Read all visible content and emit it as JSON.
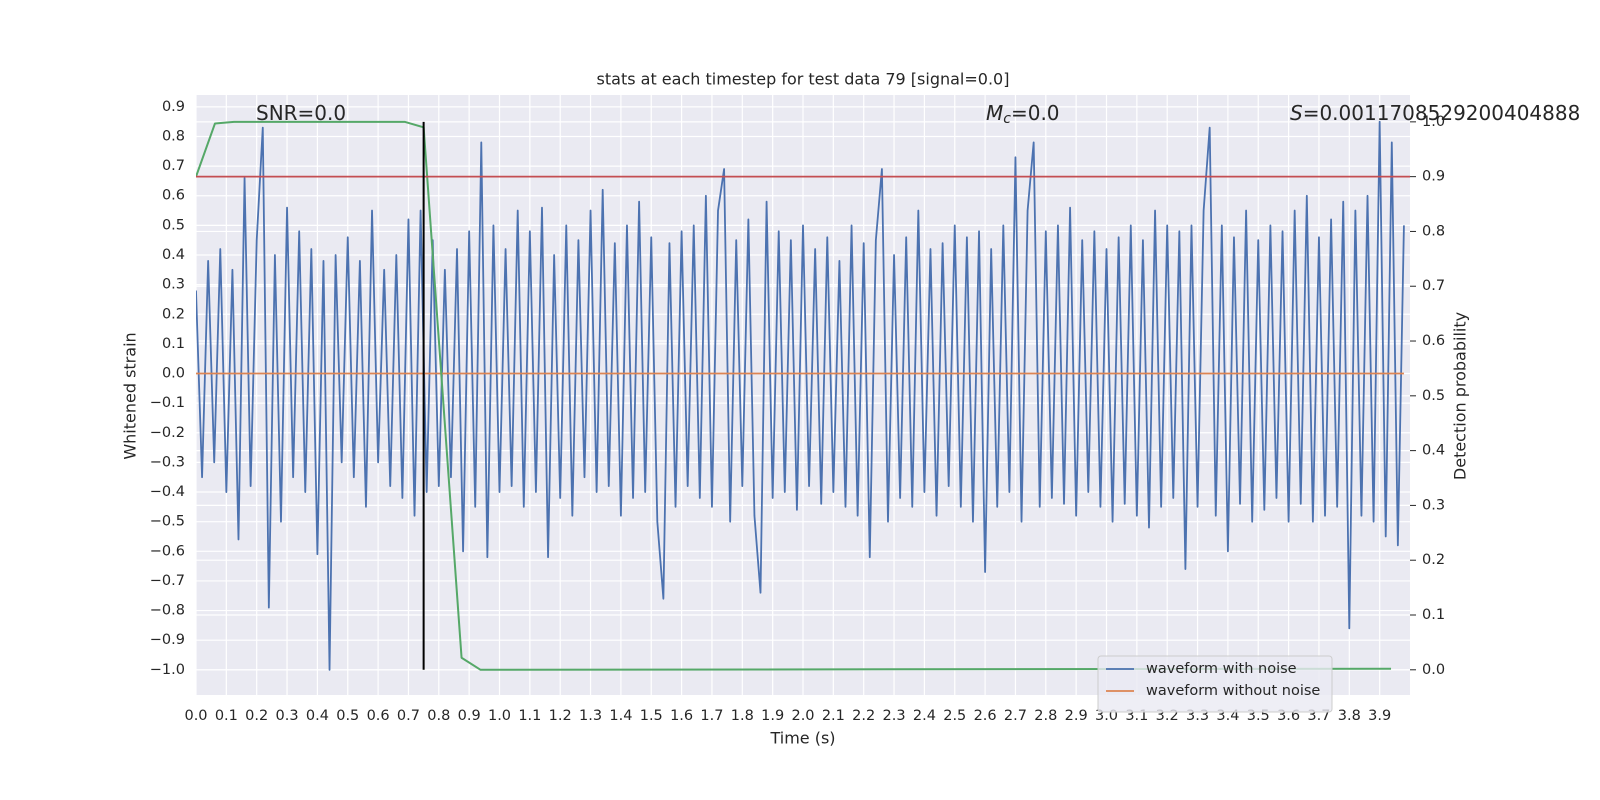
{
  "chart_data": {
    "type": "line",
    "title": "stats at each timestep for test data 79 [signal=0.0]",
    "xlabel": "Time (s)",
    "ylabel": "Whitened strain",
    "y2label": "Detection probability",
    "grid": true,
    "legend": "lower right",
    "xlim": [
      0,
      4.0
    ],
    "ylim": [
      -1.085,
      0.94
    ],
    "y2lim": [
      -0.046,
      1.049
    ],
    "xticks": [
      {
        "value": 0,
        "label": "0.0"
      },
      0.1,
      0.2,
      0.3,
      0.4,
      0.5,
      0.6,
      0.7,
      0.8,
      0.9,
      {
        "value": 1,
        "label": "1.0"
      },
      1.1,
      1.2,
      1.3,
      1.4,
      1.5,
      1.6,
      1.7,
      1.8,
      1.9,
      {
        "value": 2,
        "label": "2.0"
      },
      2.1,
      2.2,
      2.3,
      2.4,
      2.5,
      2.6,
      2.7,
      2.8,
      2.9,
      {
        "value": 3,
        "label": "3.0"
      },
      3.1,
      3.2,
      3.3,
      3.4,
      3.5,
      3.6,
      3.7,
      3.8,
      3.9
    ],
    "yticks": [
      {
        "value": -1,
        "label": "−1.0"
      },
      {
        "value": -0.9,
        "label": "−0.9"
      },
      {
        "value": -0.8,
        "label": "−0.8"
      },
      {
        "value": -0.7,
        "label": "−0.7"
      },
      {
        "value": -0.6,
        "label": "−0.6"
      },
      {
        "value": -0.5,
        "label": "−0.5"
      },
      {
        "value": -0.4,
        "label": "−0.4"
      },
      {
        "value": -0.3,
        "label": "−0.3"
      },
      {
        "value": -0.2,
        "label": "−0.2"
      },
      {
        "value": -0.1,
        "label": "−0.1"
      },
      {
        "value": 0,
        "label": "0.0"
      },
      0.1,
      0.2,
      0.3,
      0.4,
      0.5,
      0.6,
      0.7,
      0.8,
      0.9
    ],
    "y2ticks": [
      {
        "value": 0,
        "label": "0.0"
      },
      0.1,
      0.2,
      0.3,
      0.4,
      0.5,
      0.6,
      0.7,
      0.8,
      0.9,
      {
        "value": 1,
        "label": "1.0"
      }
    ],
    "series": [
      {
        "name": "waveform with noise",
        "color": "#4c72b0",
        "x": [
          0,
          0.02,
          0.04,
          0.06,
          0.08,
          0.1,
          0.12,
          0.14,
          0.16,
          0.18,
          0.2,
          0.22,
          0.24,
          0.26,
          0.28,
          0.3,
          0.32,
          0.34,
          0.36,
          0.38,
          0.4,
          0.42,
          0.44,
          0.46,
          0.48,
          0.5,
          0.52,
          0.54,
          0.56,
          0.58,
          0.6,
          0.62,
          0.64,
          0.66,
          0.68,
          0.7,
          0.72,
          0.74,
          0.76,
          0.78,
          0.8,
          0.82,
          0.84,
          0.86,
          0.88,
          0.9,
          0.92,
          0.94,
          0.96,
          0.98,
          1,
          1.02,
          1.04,
          1.06,
          1.08,
          1.1,
          1.12,
          1.14,
          1.16,
          1.18,
          1.2,
          1.22,
          1.24,
          1.26,
          1.28,
          1.3,
          1.32,
          1.34,
          1.36,
          1.38,
          1.4,
          1.42,
          1.44,
          1.46,
          1.48,
          1.5,
          1.52,
          1.54,
          1.56,
          1.58,
          1.6,
          1.62,
          1.64,
          1.66,
          1.68,
          1.7,
          1.72,
          1.74,
          1.76,
          1.78,
          1.8,
          1.82,
          1.84,
          1.86,
          1.88,
          1.9,
          1.92,
          1.94,
          1.96,
          1.98,
          2,
          2.02,
          2.04,
          2.06,
          2.08,
          2.1,
          2.12,
          2.14,
          2.16,
          2.18,
          2.2,
          2.22,
          2.24,
          2.26,
          2.28,
          2.3,
          2.32,
          2.34,
          2.36,
          2.38,
          2.4,
          2.42,
          2.44,
          2.46,
          2.48,
          2.5,
          2.52,
          2.54,
          2.56,
          2.58,
          2.6,
          2.62,
          2.64,
          2.66,
          2.68,
          2.7,
          2.72,
          2.74,
          2.76,
          2.78,
          2.8,
          2.82,
          2.84,
          2.86,
          2.88,
          2.9,
          2.92,
          2.94,
          2.96,
          2.98,
          3,
          3.02,
          3.04,
          3.06,
          3.08,
          3.1,
          3.12,
          3.14,
          3.16,
          3.18,
          3.2,
          3.22,
          3.24,
          3.26,
          3.28,
          3.3,
          3.32,
          3.34,
          3.36,
          3.38,
          3.4,
          3.42,
          3.44,
          3.46,
          3.48,
          3.5,
          3.52,
          3.54,
          3.56,
          3.58,
          3.6,
          3.62,
          3.64,
          3.66,
          3.68,
          3.7,
          3.72,
          3.74,
          3.76,
          3.78,
          3.8,
          3.82,
          3.84,
          3.86,
          3.88,
          3.9,
          3.92,
          3.94,
          3.96,
          3.98
        ],
        "values": [
          0.28,
          -0.35,
          0.38,
          -0.3,
          0.42,
          -0.4,
          0.35,
          -0.56,
          0.66,
          -0.38,
          0.45,
          0.83,
          -0.79,
          0.4,
          -0.5,
          0.56,
          -0.35,
          0.48,
          -0.4,
          0.42,
          -0.61,
          0.38,
          -1.0,
          0.4,
          -0.3,
          0.46,
          -0.35,
          0.38,
          -0.45,
          0.55,
          -0.3,
          0.35,
          -0.38,
          0.4,
          -0.42,
          0.52,
          -0.48,
          0.55,
          -0.4,
          0.45,
          -0.38,
          0.35,
          -0.35,
          0.42,
          -0.6,
          0.48,
          -0.45,
          0.78,
          -0.62,
          0.5,
          -0.4,
          0.42,
          -0.38,
          0.55,
          -0.45,
          0.48,
          -0.4,
          0.56,
          -0.62,
          0.4,
          -0.42,
          0.5,
          -0.48,
          0.45,
          -0.35,
          0.55,
          -0.4,
          0.62,
          -0.38,
          0.44,
          -0.48,
          0.5,
          -0.42,
          0.58,
          -0.4,
          0.46,
          -0.5,
          -0.76,
          0.44,
          -0.45,
          0.48,
          -0.38,
          0.5,
          -0.42,
          0.6,
          -0.45,
          0.55,
          0.69,
          -0.5,
          0.45,
          -0.38,
          0.52,
          -0.48,
          -0.74,
          0.58,
          -0.42,
          0.48,
          -0.4,
          0.45,
          -0.46,
          0.5,
          -0.38,
          0.42,
          -0.44,
          0.46,
          -0.4,
          0.38,
          -0.45,
          0.5,
          -0.48,
          0.44,
          -0.62,
          0.45,
          0.69,
          -0.5,
          0.4,
          -0.42,
          0.46,
          -0.45,
          0.55,
          -0.4,
          0.42,
          -0.48,
          0.44,
          -0.38,
          0.5,
          -0.45,
          0.46,
          -0.5,
          0.48,
          -0.67,
          0.42,
          -0.45,
          0.5,
          -0.4,
          0.73,
          -0.5,
          0.55,
          0.78,
          -0.45,
          0.48,
          -0.42,
          0.5,
          -0.44,
          0.56,
          -0.48,
          0.45,
          -0.4,
          0.48,
          -0.45,
          0.42,
          -0.5,
          0.46,
          -0.44,
          0.5,
          -0.48,
          0.45,
          -0.52,
          0.55,
          -0.45,
          0.5,
          -0.42,
          0.48,
          -0.66,
          0.5,
          -0.45,
          0.55,
          0.83,
          -0.48,
          0.5,
          -0.6,
          0.46,
          -0.44,
          0.55,
          -0.5,
          0.45,
          -0.46,
          0.5,
          -0.42,
          0.48,
          -0.5,
          0.55,
          -0.44,
          0.6,
          -0.5,
          0.46,
          -0.48,
          0.52,
          -0.45,
          0.58,
          -0.86,
          0.55,
          -0.48,
          0.6,
          -0.5,
          0.85,
          -0.55,
          0.78,
          -0.58,
          0.5
        ]
      },
      {
        "name": "waveform without noise",
        "color": "#dd8452",
        "x": [
          0,
          3.98
        ],
        "values": [
          0,
          0
        ]
      },
      {
        "color": "#55a868",
        "axis": "y2",
        "x": [
          0,
          0.0625,
          0.125,
          0.6875,
          0.75,
          0.875,
          0.9375,
          3.9375
        ],
        "values": [
          0.9,
          0.997,
          1.0,
          1.0,
          0.99,
          0.022,
          0.0,
          0.002
        ]
      }
    ],
    "threshold": {
      "value": 0.9,
      "axis": "y2",
      "color": "#c44e52"
    },
    "vline": {
      "x": 0.75,
      "y2": [
        0,
        1
      ],
      "color": "#000000"
    },
    "annotations": [
      {
        "text": "SNR=0.0"
      },
      {
        "var": "M",
        "sub": "c",
        "text": "=0.0"
      },
      {
        "var": "S",
        "text": "=0.0011708529200404888"
      }
    ]
  }
}
